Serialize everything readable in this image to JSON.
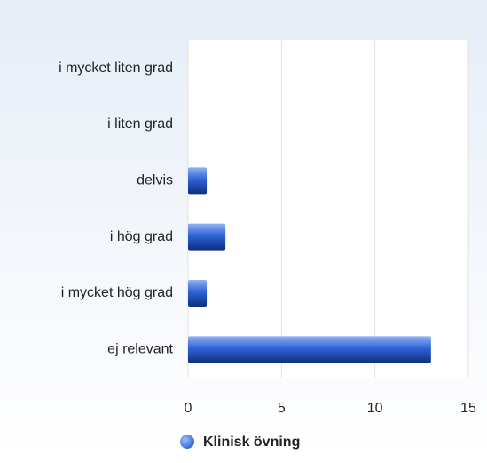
{
  "chart_data": {
    "type": "bar",
    "orientation": "horizontal",
    "categories": [
      "i mycket liten grad",
      "i liten grad",
      "delvis",
      "i hög grad",
      "i mycket hög grad",
      "ej relevant"
    ],
    "series": [
      {
        "name": "Klinisk övning",
        "color": "#2f63d6",
        "values": [
          0,
          0,
          1,
          2,
          1,
          13
        ]
      }
    ],
    "xlim": [
      0,
      15
    ],
    "xticks": [
      0,
      5,
      10,
      15
    ],
    "grid": true,
    "legend": "bottom"
  }
}
